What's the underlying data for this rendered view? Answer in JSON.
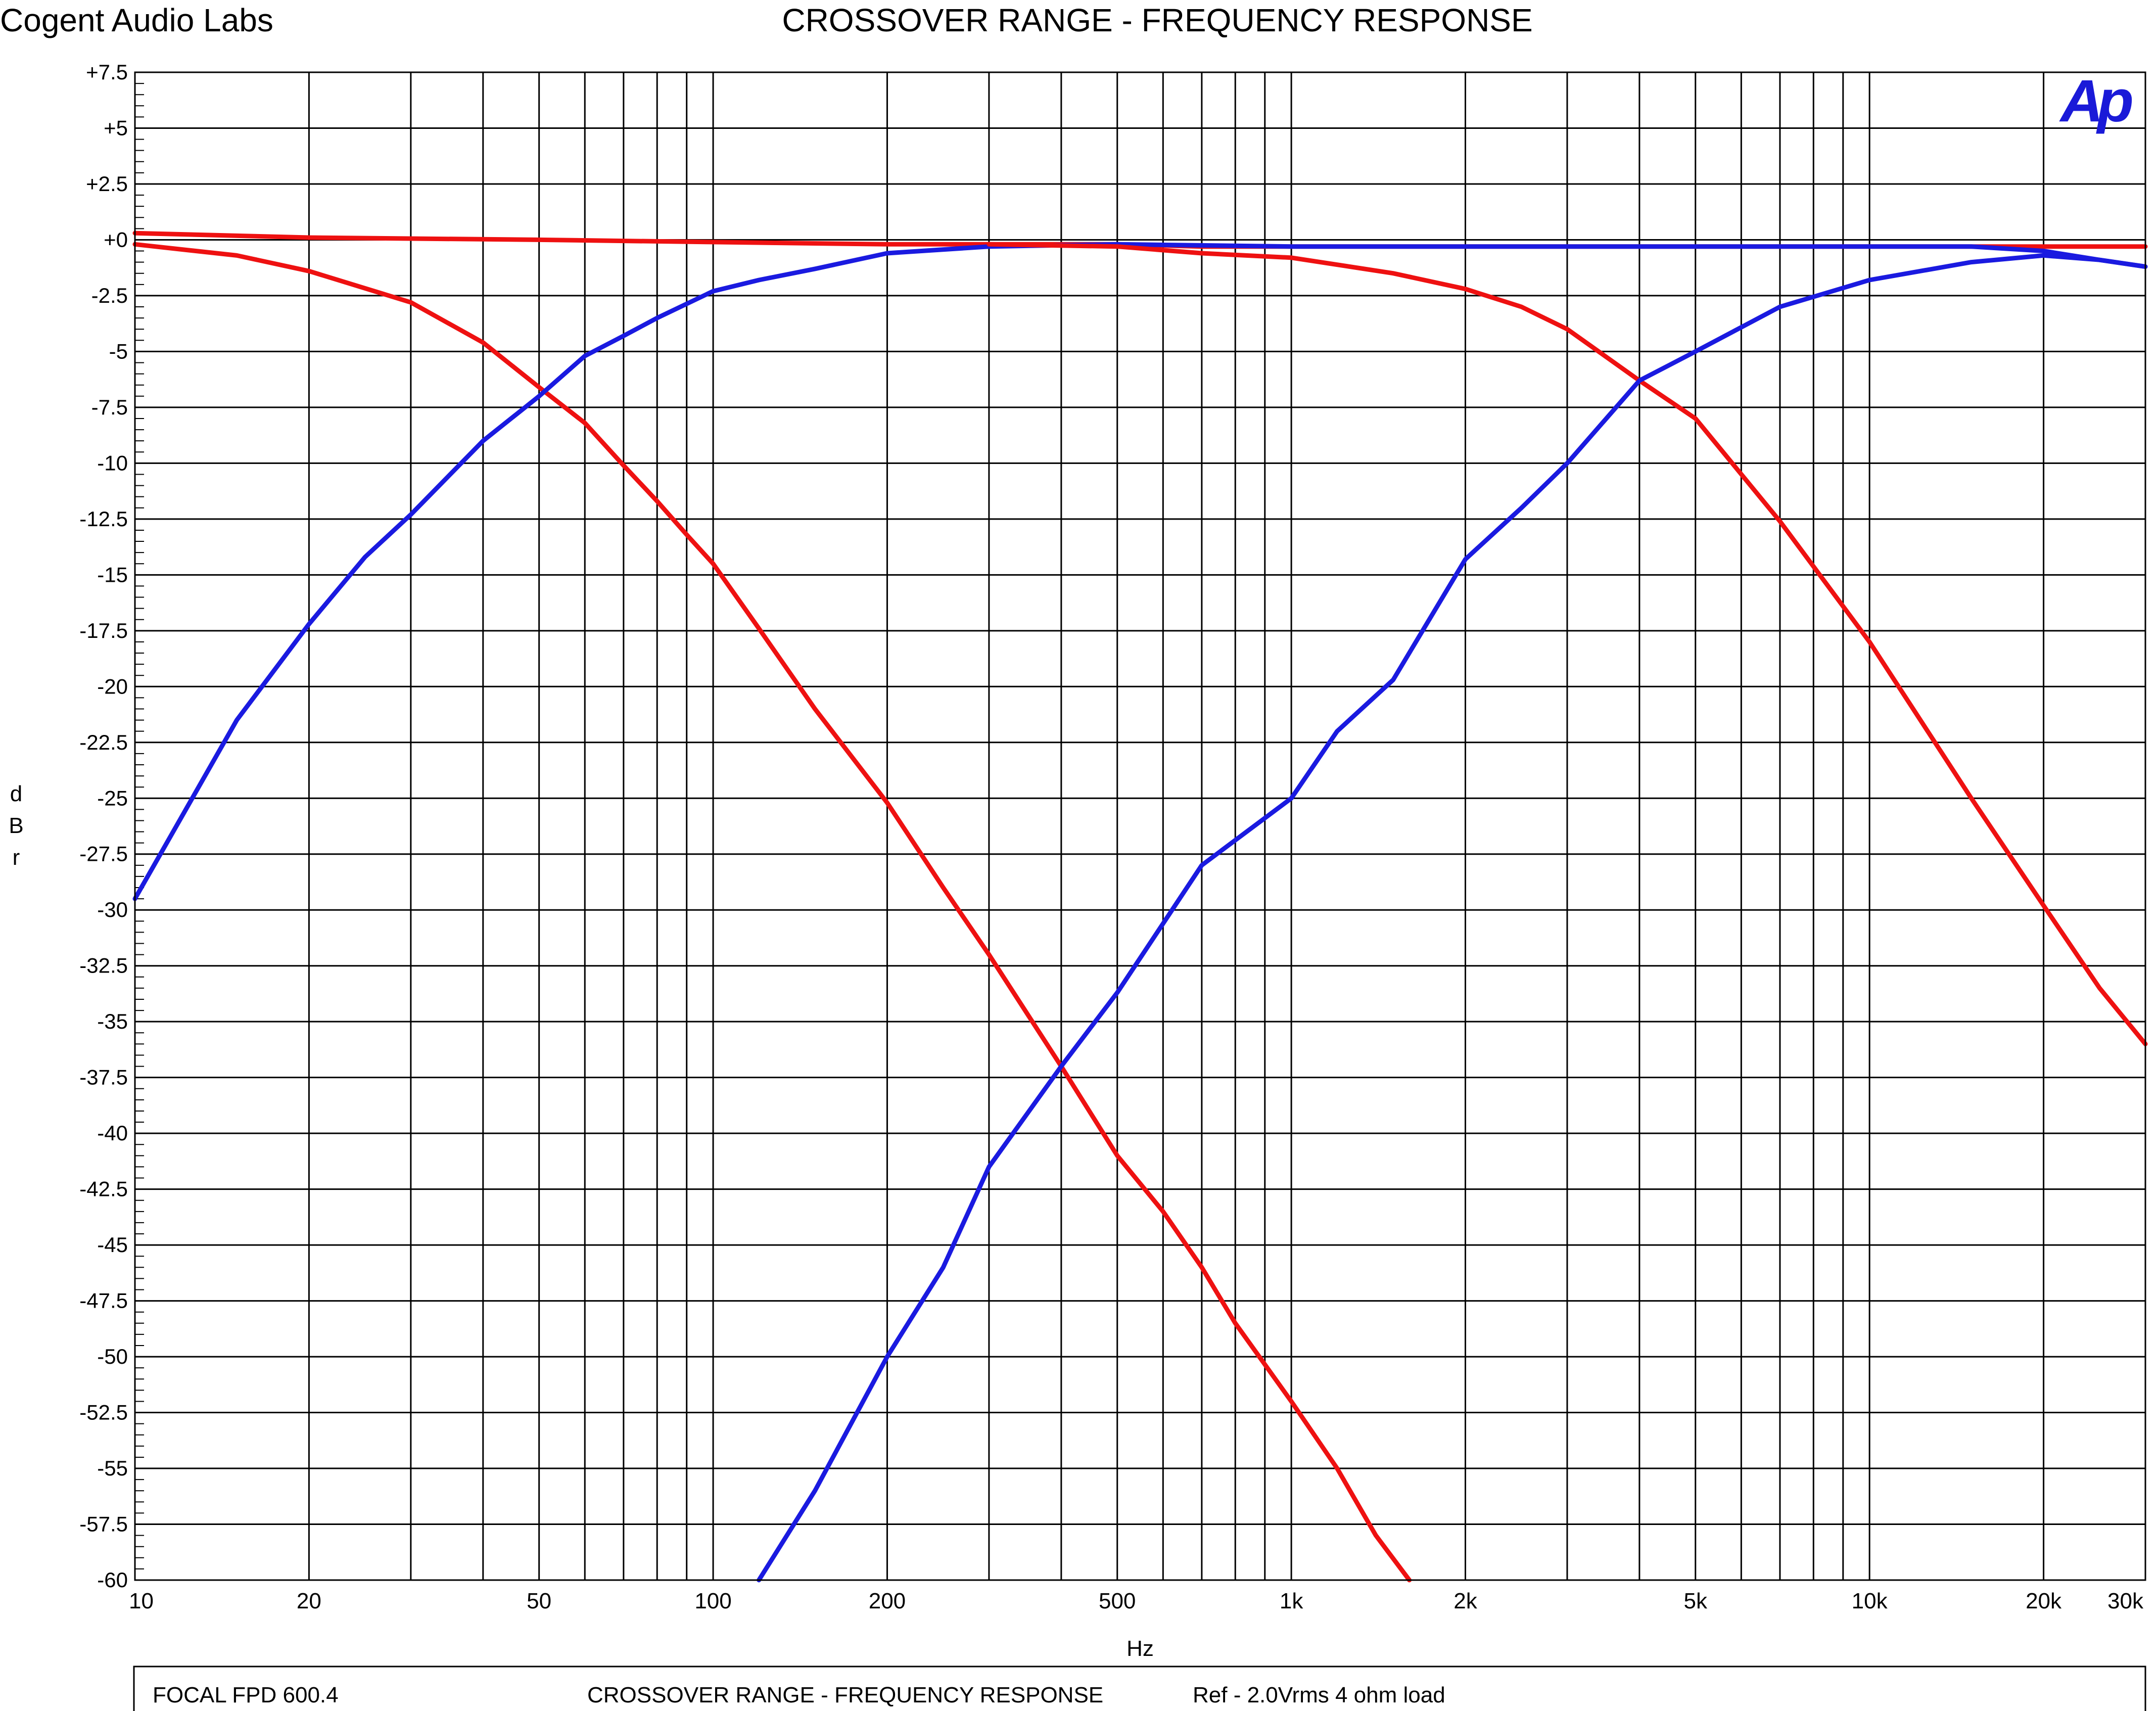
{
  "header": {
    "brand": "Cogent Audio Labs",
    "title": "CROSSOVER RANGE  -  FREQUENCY RESPONSE",
    "logo": "Ap"
  },
  "footer": {
    "device": "FOCAL FPD 600.4",
    "title": "CROSSOVER RANGE  -  FREQUENCY RESPONSE",
    "ref": "Ref - 2.0Vrms   4 ohm load"
  },
  "colors": {
    "red": "#ee1111",
    "blue": "#1a1ae0",
    "grid": "#000000",
    "logo": "#1a1ad8"
  },
  "chart_data": {
    "type": "line",
    "xscale": "log",
    "xlim": [
      10,
      30000
    ],
    "ylim": [
      -60,
      7.5
    ],
    "xlabel": "Hz",
    "ylabel": "dBr",
    "grid": true,
    "xticks": [
      {
        "v": 10,
        "label": "10"
      },
      {
        "v": 20,
        "label": "20"
      },
      {
        "v": 50,
        "label": "50"
      },
      {
        "v": 100,
        "label": "100"
      },
      {
        "v": 200,
        "label": "200"
      },
      {
        "v": 500,
        "label": "500"
      },
      {
        "v": 1000,
        "label": "1k"
      },
      {
        "v": 2000,
        "label": "2k"
      },
      {
        "v": 5000,
        "label": "5k"
      },
      {
        "v": 10000,
        "label": "10k"
      },
      {
        "v": 20000,
        "label": "20k"
      },
      {
        "v": 30000,
        "label": "30k"
      }
    ],
    "yticks": [
      {
        "v": 7.5,
        "label": "+7.5"
      },
      {
        "v": 5,
        "label": "+5"
      },
      {
        "v": 2.5,
        "label": "+2.5"
      },
      {
        "v": 0,
        "label": "+0"
      },
      {
        "v": -2.5,
        "label": "-2.5"
      },
      {
        "v": -5,
        "label": "-5"
      },
      {
        "v": -7.5,
        "label": "-7.5"
      },
      {
        "v": -10,
        "label": "-10"
      },
      {
        "v": -12.5,
        "label": "-12.5"
      },
      {
        "v": -15,
        "label": "-15"
      },
      {
        "v": -17.5,
        "label": "-17.5"
      },
      {
        "v": -20,
        "label": "-20"
      },
      {
        "v": -22.5,
        "label": "-22.5"
      },
      {
        "v": -25,
        "label": "-25"
      },
      {
        "v": -27.5,
        "label": "-27.5"
      },
      {
        "v": -30,
        "label": "-30"
      },
      {
        "v": -32.5,
        "label": "-32.5"
      },
      {
        "v": -35,
        "label": "-35"
      },
      {
        "v": -37.5,
        "label": "-37.5"
      },
      {
        "v": -40,
        "label": "-40"
      },
      {
        "v": -42.5,
        "label": "-42.5"
      },
      {
        "v": -45,
        "label": "-45"
      },
      {
        "v": -47.5,
        "label": "-47.5"
      },
      {
        "v": -50,
        "label": "-50"
      },
      {
        "v": -52.5,
        "label": "-52.5"
      },
      {
        "v": -55,
        "label": "-55"
      },
      {
        "v": -57.5,
        "label": "-57.5"
      },
      {
        "v": -60,
        "label": "-60"
      }
    ],
    "series": [
      {
        "color": "#ee1111",
        "points": [
          [
            10,
            0.3
          ],
          [
            20,
            0.1
          ],
          [
            50,
            0
          ],
          [
            100,
            -0.1
          ],
          [
            200,
            -0.2
          ],
          [
            300,
            -0.2
          ],
          [
            500,
            -0.2
          ],
          [
            700,
            -0.3
          ],
          [
            1000,
            -0.3
          ],
          [
            2000,
            -0.3
          ],
          [
            5000,
            -0.3
          ],
          [
            10000,
            -0.3
          ],
          [
            20000,
            -0.3
          ],
          [
            30000,
            -0.3
          ]
        ]
      },
      {
        "color": "#ee1111",
        "points": [
          [
            10,
            -0.2
          ],
          [
            15,
            -0.7
          ],
          [
            20,
            -1.4
          ],
          [
            30,
            -2.8
          ],
          [
            40,
            -4.6
          ],
          [
            50,
            -6.6
          ],
          [
            60,
            -8.2
          ],
          [
            70,
            -10.1
          ],
          [
            80,
            -11.7
          ],
          [
            90,
            -13.2
          ],
          [
            100,
            -14.5
          ],
          [
            120,
            -17.4
          ],
          [
            150,
            -21
          ],
          [
            200,
            -25.2
          ],
          [
            250,
            -29
          ],
          [
            300,
            -32
          ],
          [
            400,
            -37
          ],
          [
            500,
            -41
          ],
          [
            600,
            -43.5
          ],
          [
            700,
            -46
          ],
          [
            800,
            -48.5
          ],
          [
            1000,
            -52
          ],
          [
            1200,
            -55
          ],
          [
            1400,
            -58
          ],
          [
            1600,
            -60
          ]
        ]
      },
      {
        "color": "#1a1ae0",
        "points": [
          [
            10,
            -29.5
          ],
          [
            15,
            -21.5
          ],
          [
            20,
            -17.2
          ],
          [
            25,
            -14.2
          ],
          [
            30,
            -12.3
          ],
          [
            40,
            -9
          ],
          [
            50,
            -7
          ],
          [
            60,
            -5.2
          ],
          [
            70,
            -4.3
          ],
          [
            80,
            -3.5
          ],
          [
            100,
            -2.3
          ],
          [
            120,
            -1.8
          ],
          [
            150,
            -1.3
          ],
          [
            200,
            -0.6
          ],
          [
            300,
            -0.3
          ],
          [
            500,
            -0.2
          ],
          [
            1000,
            -0.3
          ],
          [
            2000,
            -0.3
          ],
          [
            5000,
            -0.3
          ],
          [
            10000,
            -0.3
          ],
          [
            15000,
            -0.3
          ],
          [
            20000,
            -0.5
          ],
          [
            25000,
            -0.9
          ],
          [
            30000,
            -1.2
          ]
        ]
      },
      {
        "color": "#ee1111",
        "points": [
          [
            300,
            -0.2
          ],
          [
            500,
            -0.3
          ],
          [
            700,
            -0.6
          ],
          [
            1000,
            -0.8
          ],
          [
            1500,
            -1.5
          ],
          [
            2000,
            -2.2
          ],
          [
            2500,
            -3
          ],
          [
            3000,
            -4
          ],
          [
            4000,
            -6.3
          ],
          [
            5000,
            -8
          ],
          [
            7000,
            -12.6
          ],
          [
            10000,
            -18
          ],
          [
            15000,
            -25
          ],
          [
            20000,
            -29.8
          ],
          [
            25000,
            -33.5
          ],
          [
            30000,
            -36
          ]
        ]
      },
      {
        "color": "#1a1ae0",
        "points": [
          [
            120,
            -60
          ],
          [
            150,
            -56
          ],
          [
            200,
            -50
          ],
          [
            250,
            -46
          ],
          [
            300,
            -41.5
          ],
          [
            400,
            -37
          ],
          [
            500,
            -33.7
          ],
          [
            700,
            -28
          ],
          [
            1000,
            -25
          ],
          [
            1200,
            -22
          ],
          [
            1500,
            -19.7
          ],
          [
            2000,
            -14.3
          ],
          [
            2500,
            -12
          ],
          [
            3000,
            -10
          ],
          [
            4000,
            -6.3
          ],
          [
            5000,
            -5
          ],
          [
            7000,
            -3
          ],
          [
            10000,
            -1.8
          ],
          [
            15000,
            -1
          ],
          [
            20000,
            -0.7
          ],
          [
            25000,
            -0.9
          ],
          [
            30000,
            -1.2
          ]
        ]
      }
    ]
  }
}
